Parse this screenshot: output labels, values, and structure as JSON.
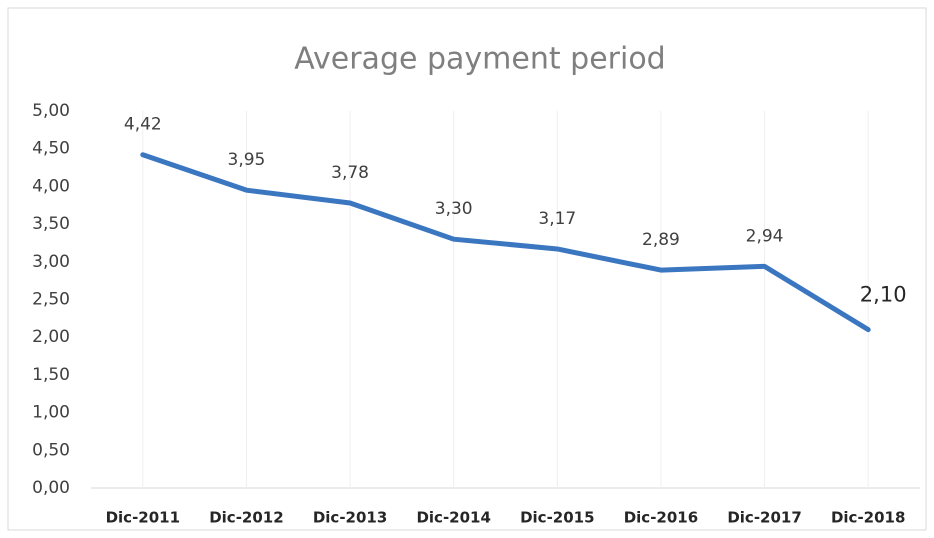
{
  "chart_data": {
    "type": "line",
    "title": "Average payment period",
    "categories": [
      "Dic-2011",
      "Dic-2012",
      "Dic-2013",
      "Dic-2014",
      "Dic-2015",
      "Dic-2016",
      "Dic-2017",
      "Dic-2018"
    ],
    "series": [
      {
        "name": "Average payment period",
        "color": "#3b76c1",
        "values": [
          4.42,
          3.95,
          3.78,
          3.3,
          3.17,
          2.89,
          2.94,
          2.1
        ],
        "value_labels": [
          "4,42",
          "3,95",
          "3,78",
          "3,30",
          "3,17",
          "2,89",
          "2,94",
          "2,10"
        ]
      }
    ],
    "ylim": [
      0,
      5
    ],
    "yticks": [
      {
        "value": 0,
        "label": "0,00"
      },
      {
        "value": 0.5,
        "label": "0,50"
      },
      {
        "value": 1,
        "label": "1,00"
      },
      {
        "value": 1.5,
        "label": "1,50"
      },
      {
        "value": 2,
        "label": "2,00"
      },
      {
        "value": 2.5,
        "label": "2,50"
      },
      {
        "value": 3,
        "label": "3,00"
      },
      {
        "value": 3.5,
        "label": "3,50"
      },
      {
        "value": 4,
        "label": "4,00"
      },
      {
        "value": 4.5,
        "label": "4,50"
      },
      {
        "value": 5,
        "label": "5,00"
      }
    ],
    "grid": false
  }
}
